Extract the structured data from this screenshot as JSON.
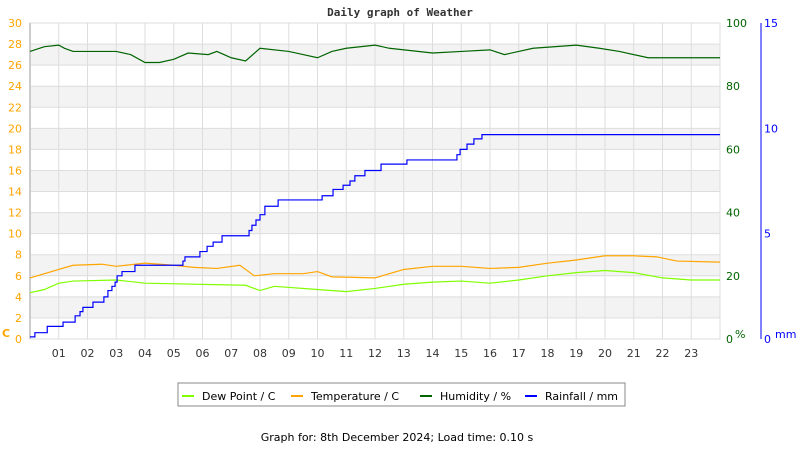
{
  "chart_data": {
    "type": "line",
    "title": "Daily graph of Weather",
    "footer": "Graph for: 8th December 2024; Load time: 0.10 s",
    "grid": true,
    "legend_placement": "bottom-center",
    "x": {
      "ticks": [
        "01",
        "02",
        "03",
        "04",
        "05",
        "06",
        "07",
        "08",
        "09",
        "10",
        "11",
        "12",
        "13",
        "14",
        "15",
        "16",
        "17",
        "18",
        "19",
        "20",
        "21",
        "22",
        "23"
      ],
      "range_hours": [
        0,
        24
      ]
    },
    "y_left": {
      "label": "C",
      "range": [
        0,
        30
      ],
      "ticks": [
        0,
        2,
        4,
        6,
        8,
        10,
        12,
        14,
        16,
        18,
        20,
        22,
        24,
        26,
        28,
        30
      ],
      "color": "#ffa500"
    },
    "y_right": {
      "label": "%",
      "range": [
        0,
        100
      ],
      "ticks": [
        0,
        20,
        40,
        60,
        80,
        100
      ],
      "color": "#006400"
    },
    "y_rain": {
      "label": "mm",
      "range": [
        0,
        15
      ],
      "ticks": [
        0,
        5,
        10,
        15
      ],
      "color": "#0000ff"
    },
    "series": [
      {
        "name": "Dew Point / C",
        "axis": "left",
        "color": "#7fff00",
        "x": [
          0,
          0.5,
          1,
          1.5,
          3,
          4,
          7.5,
          8,
          8.5,
          10,
          11,
          12,
          13,
          14,
          15,
          16,
          17,
          18,
          19,
          20,
          21,
          22,
          23,
          24
        ],
        "y": [
          4.4,
          4.7,
          5.3,
          5.5,
          5.6,
          5.3,
          5.1,
          4.6,
          5.0,
          4.7,
          4.5,
          4.8,
          5.2,
          5.4,
          5.5,
          5.3,
          5.6,
          6.0,
          6.3,
          6.5,
          6.3,
          5.8,
          5.6,
          5.6
        ]
      },
      {
        "name": "Temperature / C",
        "axis": "left",
        "color": "#ffa500",
        "x": [
          0,
          1,
          1.5,
          2.5,
          3,
          4,
          5,
          5.7,
          6.5,
          7.3,
          7.8,
          8.5,
          9.5,
          10,
          10.5,
          12,
          13,
          14,
          15,
          16,
          17,
          18,
          19,
          20,
          21,
          21.8,
          22.5,
          24
        ],
        "y": [
          5.8,
          6.6,
          7.0,
          7.1,
          6.9,
          7.2,
          7.0,
          6.8,
          6.7,
          7.0,
          6.0,
          6.2,
          6.2,
          6.4,
          5.9,
          5.8,
          6.6,
          6.9,
          6.9,
          6.7,
          6.8,
          7.2,
          7.5,
          7.9,
          7.9,
          7.8,
          7.4,
          7.3
        ]
      },
      {
        "name": "Humidity / %",
        "axis": "right",
        "color": "#006400",
        "x": [
          0,
          0.5,
          1,
          1.2,
          1.5,
          3,
          3.5,
          4,
          4.5,
          5,
          5.5,
          6.2,
          6.5,
          7,
          7.5,
          8,
          9,
          9.5,
          10,
          10.5,
          11,
          12,
          12.5,
          14,
          15,
          16,
          16.5,
          17,
          17.5,
          19,
          19.8,
          20.5,
          21.5,
          22.5,
          23,
          24
        ],
        "y": [
          91,
          92.5,
          93,
          92,
          91,
          91,
          90,
          87.5,
          87.5,
          88.5,
          90.5,
          90,
          91,
          89,
          88,
          92,
          91,
          90,
          89,
          91,
          92,
          93,
          92,
          90.5,
          91,
          91.5,
          90,
          91,
          92,
          93,
          92,
          91,
          89,
          89,
          89,
          89
        ]
      },
      {
        "name": "Rainfall / mm",
        "axis": "rain",
        "color": "#0000ff",
        "step": true,
        "x": [
          0,
          0.17,
          0.6,
          1.15,
          1.57,
          1.74,
          1.84,
          2.19,
          2.57,
          2.71,
          2.85,
          2.96,
          3.03,
          3.2,
          3.65,
          5.22,
          5.32,
          5.39,
          5.91,
          6.16,
          6.37,
          6.68,
          7.62,
          7.72,
          7.86,
          8.0,
          8.17,
          8.63,
          10.09,
          10.16,
          10.54,
          10.89,
          11.13,
          11.3,
          11.65,
          12.21,
          13.11,
          14.78,
          14.85,
          14.96,
          15.2,
          15.44,
          15.72,
          24
        ],
        "y": [
          0.1,
          0.3,
          0.6,
          0.8,
          1.1,
          1.3,
          1.5,
          1.75,
          2.0,
          2.3,
          2.5,
          2.7,
          3.0,
          3.2,
          3.5,
          3.5,
          3.7,
          3.9,
          4.15,
          4.4,
          4.6,
          4.9,
          5.15,
          5.4,
          5.65,
          5.9,
          6.3,
          6.6,
          6.6,
          6.8,
          7.1,
          7.3,
          7.5,
          7.75,
          8.0,
          8.3,
          8.5,
          8.5,
          8.75,
          9.0,
          9.25,
          9.5,
          9.7,
          9.7
        ]
      }
    ]
  }
}
